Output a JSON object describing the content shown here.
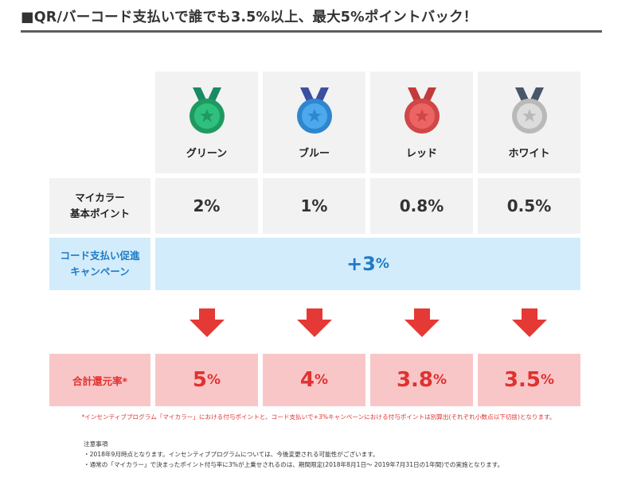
{
  "title": "■QR/バーコード支払いで誰でも3.5%以上、最大5%ポイントバック！",
  "ranks": [
    {
      "name": "グリーン",
      "medal_color": "#2fc07e",
      "medal_dark": "#1e9a60",
      "ribbon": "#1a8a63",
      "base": "2%",
      "total_num": "5",
      "total_unit": "%"
    },
    {
      "name": "ブルー",
      "medal_color": "#4da8ec",
      "medal_dark": "#2f86cf",
      "ribbon": "#3b4fa0",
      "base": "1%",
      "total_num": "4",
      "total_unit": "%"
    },
    {
      "name": "レッド",
      "medal_color": "#ec6464",
      "medal_dark": "#cf4747",
      "ribbon": "#c23b3b",
      "base": "0.8%",
      "total_num": "3.8",
      "total_unit": "%"
    },
    {
      "name": "ホワイト",
      "medal_color": "#dcdcdc",
      "medal_dark": "#b9b9b9",
      "ribbon": "#4b5668",
      "base": "0.5%",
      "total_num": "3.5",
      "total_unit": "%"
    }
  ],
  "rows": {
    "base_label_1": "マイカラー",
    "base_label_2": "基本ポイント",
    "campaign_label_1": "コード支払い促進",
    "campaign_label_2": "キャンペーン",
    "campaign_value_sign": "+3",
    "campaign_value_unit": "%",
    "total_label": "合計還元率*"
  },
  "footnote_red": "*インセンティブプログラム「マイカラー」における付与ポイントと、コード支払いで+3%キャンペーンにおける付与ポイントは別算出(それぞれ小数点以下切捨)となります。",
  "notes": {
    "heading": "注意事項",
    "items": [
      "・2018年9月時点となります。インセンティブプログラムについては、今後変更される可能性がございます。",
      "・通常の「マイカラー」で決まったポイント付与率に3%が上乗せされるのは、期間限定(2018年8月1日〜 2019年7月31日の1年間)での実施となります。"
    ]
  },
  "colors": {
    "accent_red": "#e0322f",
    "accent_blue": "#1f7bc6",
    "arrow_red": "#e53935"
  }
}
